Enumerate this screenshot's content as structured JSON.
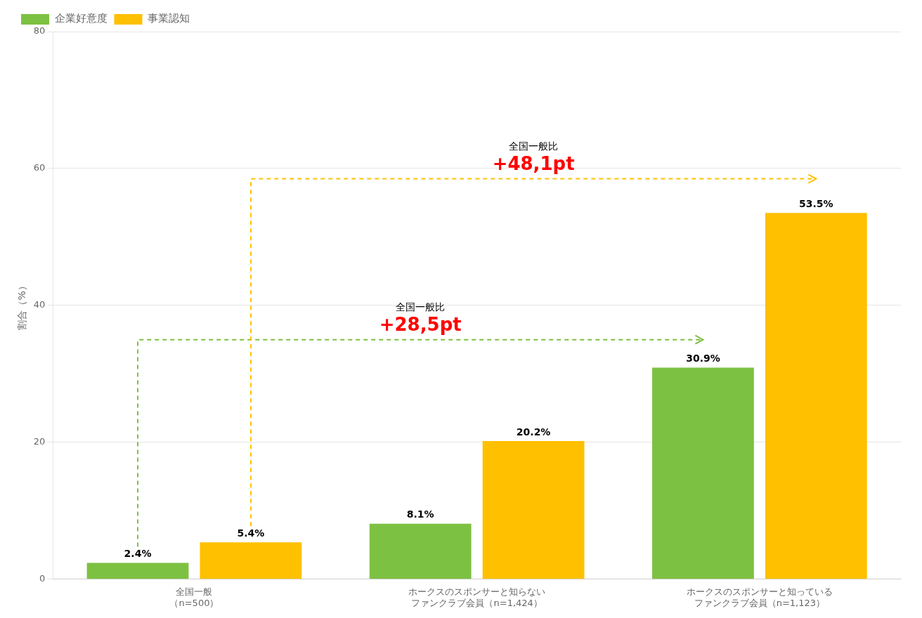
{
  "chart_data": {
    "type": "bar",
    "categories": [
      "全国一般\n（n=500）",
      "ホークスのスポンサーと知らない\nファンクラブ会員（n=1,424）",
      "ホークスのスポンサーと知っている\nファンクラブ会員（n=1,123）"
    ],
    "series": [
      {
        "name": "企業好意度",
        "color": "#7DC142",
        "values": [
          2.4,
          8.1,
          30.9
        ],
        "value_labels": [
          "2.4%",
          "8.1%",
          "30.9%"
        ]
      },
      {
        "name": "事業認知",
        "color": "#FFC000",
        "values": [
          5.4,
          20.2,
          53.5
        ],
        "value_labels": [
          "5.4%",
          "20.2%",
          "53.5%"
        ]
      }
    ],
    "ylabel": "割合（%）",
    "ylim": [
      0,
      80
    ],
    "yticks": [
      0,
      20,
      40,
      60,
      80
    ],
    "grid": true,
    "legend": "top",
    "data_labels": true,
    "annotations": [
      {
        "series": "企業好意度",
        "y": 35.0,
        "label": "全国一般比",
        "value_label": "+28,5pt",
        "color": "#ff0000"
      },
      {
        "series": "事業認知",
        "y": 58.5,
        "label": "全国一般比",
        "value_label": "+48,1pt",
        "color": "#ff0000"
      }
    ]
  }
}
